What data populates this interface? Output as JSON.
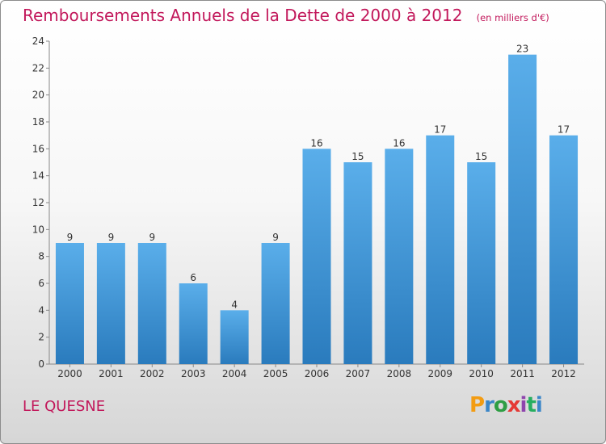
{
  "header": {
    "title": "Remboursements Annuels de la Dette de 2000 à 2012",
    "unit": "(en milliers d'€)"
  },
  "commune": "LE QUESNE",
  "logo": {
    "letters": [
      "P",
      "r",
      "o",
      "x",
      "i",
      "t",
      "i"
    ],
    "colors": [
      "#f39c12",
      "#3a86c8",
      "#2e9e44",
      "#e53935",
      "#8e44ad",
      "#27ae60",
      "#3a86c8"
    ]
  },
  "chart_data": {
    "type": "bar",
    "categories": [
      "2000",
      "2001",
      "2002",
      "2003",
      "2004",
      "2005",
      "2006",
      "2007",
      "2008",
      "2009",
      "2010",
      "2011",
      "2012"
    ],
    "values": [
      9,
      9,
      9,
      6,
      4,
      9,
      16,
      15,
      16,
      17,
      15,
      23,
      17
    ],
    "title": "Remboursements Annuels de la Dette de 2000 à 2012",
    "xlabel": "",
    "ylabel": "",
    "ylim": [
      0,
      24
    ],
    "yticks": [
      0,
      2,
      4,
      6,
      8,
      10,
      12,
      14,
      16,
      18,
      20,
      22,
      24
    ],
    "grid": false,
    "bar_color_top": "#5aaeea",
    "bar_color_bottom": "#2a7bbd"
  }
}
